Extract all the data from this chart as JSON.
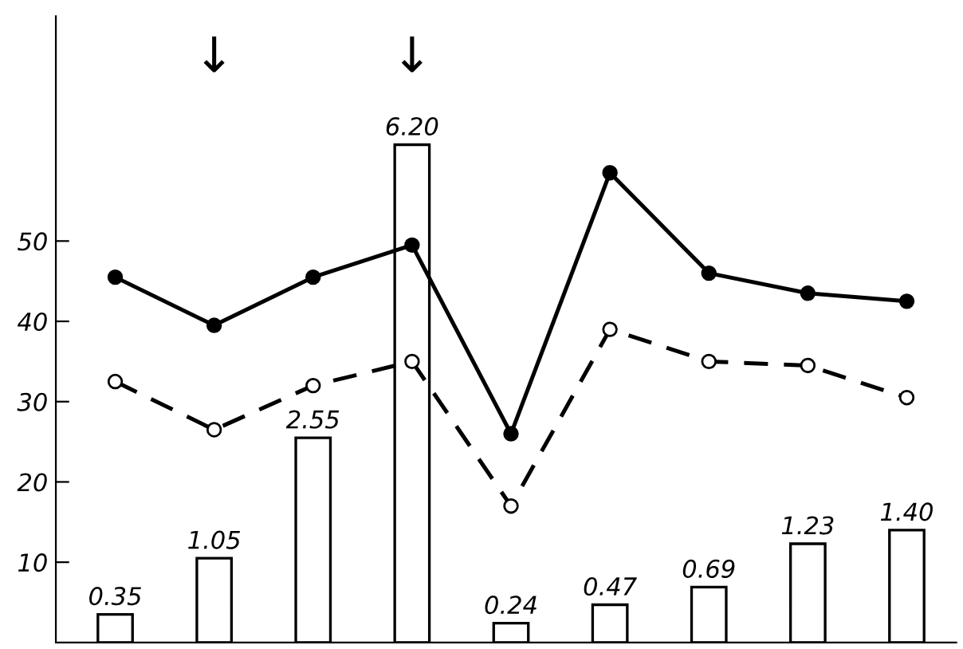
{
  "chart_data": {
    "type": "line",
    "categories": [
      null,
      null,
      null,
      null,
      null,
      null,
      null,
      null,
      null
    ],
    "ylim": [
      0,
      78
    ],
    "yticks": [
      10,
      20,
      30,
      40,
      50
    ],
    "y2lim": [
      0,
      7.8
    ],
    "tick_labels": "y",
    "grid": false,
    "series": [
      {
        "type": "bar",
        "axis": "y2",
        "color": "#000000",
        "values": [
          0.35,
          1.05,
          2.55,
          6.2,
          0.24,
          0.47,
          0.69,
          1.23,
          1.4
        ],
        "value_labels": [
          "0.35",
          "1.05",
          "2.55",
          "6.20",
          "0.24",
          "0.47",
          "0.69",
          "1.23",
          "1.40"
        ]
      },
      {
        "color": "#000000",
        "marker": "circle",
        "line_style": "solid",
        "values": [
          45.5,
          39.5,
          45.5,
          49.5,
          26,
          58.5,
          46,
          43.5,
          42.5
        ]
      },
      {
        "color": "#000000",
        "marker": "circle",
        "line_style": "dashed",
        "values": [
          32.5,
          26.5,
          32,
          35,
          17,
          39,
          35,
          34.5,
          30.5
        ]
      }
    ],
    "annotations": [
      "↓",
      "↓"
    ]
  }
}
